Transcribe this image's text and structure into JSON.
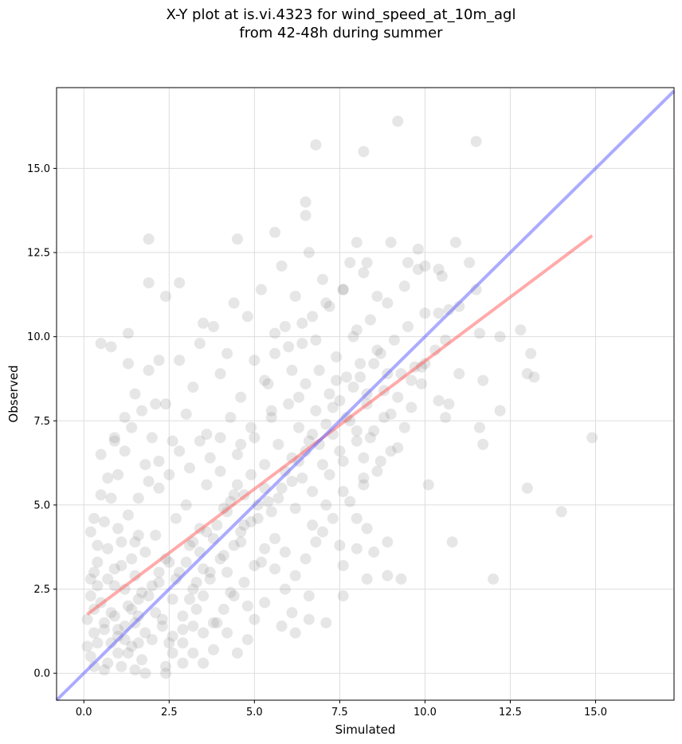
{
  "chart_data": {
    "type": "scatter",
    "title": "X-Y plot at is.vi.4323 for wind_speed_at_10m_agl",
    "subtitle": "from 42-48h during summer",
    "xlabel": "Simulated",
    "ylabel": "Observed",
    "xlim": [
      -0.8,
      17.3
    ],
    "ylim": [
      -0.8,
      17.4
    ],
    "grid": true,
    "x_ticks": [
      "0.0",
      "2.5",
      "5.0",
      "7.5",
      "10.0",
      "12.5",
      "15.0"
    ],
    "y_ticks": [
      "0.0",
      "2.5",
      "5.0",
      "7.5",
      "10.0",
      "12.5",
      "15.0"
    ],
    "x_tick_values": [
      0,
      2.5,
      5,
      7.5,
      10,
      12.5,
      15
    ],
    "y_tick_values": [
      0,
      2.5,
      5,
      7.5,
      10,
      12.5,
      15
    ],
    "point_color": "#808080",
    "points": [
      [
        0.2,
        0.5
      ],
      [
        0.3,
        1.2
      ],
      [
        0.4,
        0.9
      ],
      [
        0.5,
        2.1
      ],
      [
        0.6,
        1.5
      ],
      [
        0.7,
        0.3
      ],
      [
        0.8,
        1.8
      ],
      [
        0.9,
        2.6
      ],
      [
        1.0,
        1.1
      ],
      [
        1.0,
        0.6
      ],
      [
        1.1,
        3.2
      ],
      [
        1.2,
        1.4
      ],
      [
        1.3,
        2.0
      ],
      [
        1.4,
        0.8
      ],
      [
        1.5,
        2.9
      ],
      [
        1.6,
        1.7
      ],
      [
        1.7,
        0.4
      ],
      [
        1.8,
        3.6
      ],
      [
        1.9,
        2.3
      ],
      [
        2.0,
        1.0
      ],
      [
        2.1,
        4.1
      ],
      [
        2.2,
        2.7
      ],
      [
        2.3,
        1.6
      ],
      [
        2.4,
        3.4
      ],
      [
        2.5,
        0.9
      ],
      [
        2.6,
        2.2
      ],
      [
        2.7,
        4.6
      ],
      [
        2.8,
        3.0
      ],
      [
        2.9,
        1.3
      ],
      [
        3.0,
        5.0
      ],
      [
        3.1,
        3.8
      ],
      [
        3.2,
        2.5
      ],
      [
        3.3,
        1.9
      ],
      [
        3.4,
        4.3
      ],
      [
        3.5,
        3.1
      ],
      [
        3.6,
        5.6
      ],
      [
        3.7,
        2.8
      ],
      [
        3.8,
        4.0
      ],
      [
        3.9,
        1.5
      ],
      [
        4.0,
        6.0
      ],
      [
        4.1,
        3.5
      ],
      [
        4.2,
        4.8
      ],
      [
        4.3,
        2.4
      ],
      [
        4.4,
        5.3
      ],
      [
        4.5,
        6.5
      ],
      [
        4.6,
        3.9
      ],
      [
        4.7,
        4.4
      ],
      [
        4.8,
        2.0
      ],
      [
        4.9,
        5.9
      ],
      [
        5.0,
        7.0
      ],
      [
        5.1,
        4.6
      ],
      [
        5.2,
        3.3
      ],
      [
        5.3,
        6.2
      ],
      [
        5.4,
        5.1
      ],
      [
        5.5,
        7.6
      ],
      [
        5.6,
        4.0
      ],
      [
        5.7,
        6.8
      ],
      [
        5.8,
        5.5
      ],
      [
        5.9,
        3.6
      ],
      [
        6.0,
        8.0
      ],
      [
        6.1,
        6.4
      ],
      [
        6.2,
        4.9
      ],
      [
        6.3,
        7.3
      ],
      [
        6.4,
        5.8
      ],
      [
        6.5,
        8.6
      ],
      [
        6.6,
        6.9
      ],
      [
        6.7,
        4.4
      ],
      [
        6.8,
        7.8
      ],
      [
        6.9,
        9.0
      ],
      [
        7.0,
        6.2
      ],
      [
        7.1,
        5.0
      ],
      [
        7.2,
        8.3
      ],
      [
        7.3,
        7.1
      ],
      [
        7.4,
        9.4
      ],
      [
        7.5,
        6.6
      ],
      [
        7.6,
        5.4
      ],
      [
        7.7,
        8.8
      ],
      [
        7.8,
        7.5
      ],
      [
        7.9,
        10.0
      ],
      [
        8.0,
        6.9
      ],
      [
        8.1,
        9.2
      ],
      [
        8.2,
        5.8
      ],
      [
        8.3,
        8.0
      ],
      [
        8.4,
        10.5
      ],
      [
        8.5,
        7.2
      ],
      [
        8.6,
        9.6
      ],
      [
        8.7,
        6.3
      ],
      [
        8.8,
        8.4
      ],
      [
        8.9,
        11.0
      ],
      [
        9.0,
        7.7
      ],
      [
        9.1,
        9.9
      ],
      [
        9.2,
        6.7
      ],
      [
        9.3,
        8.9
      ],
      [
        9.4,
        11.5
      ],
      [
        9.5,
        10.3
      ],
      [
        9.6,
        7.9
      ],
      [
        9.7,
        9.1
      ],
      [
        9.8,
        12.0
      ],
      [
        9.9,
        8.6
      ],
      [
        10.0,
        10.7
      ],
      [
        0.4,
        3.8
      ],
      [
        0.6,
        4.5
      ],
      [
        0.8,
        5.2
      ],
      [
        1.0,
        5.9
      ],
      [
        1.2,
        6.6
      ],
      [
        1.4,
        7.3
      ],
      [
        1.6,
        4.1
      ],
      [
        1.8,
        6.2
      ],
      [
        2.0,
        7.0
      ],
      [
        2.2,
        5.5
      ],
      [
        2.4,
        8.0
      ],
      [
        2.6,
        6.9
      ],
      [
        2.8,
        9.3
      ],
      [
        3.0,
        7.7
      ],
      [
        3.2,
        8.5
      ],
      [
        3.4,
        9.8
      ],
      [
        3.6,
        7.1
      ],
      [
        3.8,
        10.3
      ],
      [
        4.0,
        8.9
      ],
      [
        4.2,
        9.5
      ],
      [
        4.4,
        11.0
      ],
      [
        4.6,
        8.2
      ],
      [
        4.8,
        10.6
      ],
      [
        5.0,
        9.3
      ],
      [
        5.2,
        11.4
      ],
      [
        5.4,
        8.6
      ],
      [
        5.6,
        10.1
      ],
      [
        5.8,
        12.1
      ],
      [
        6.0,
        9.7
      ],
      [
        6.2,
        11.2
      ],
      [
        6.4,
        10.4
      ],
      [
        6.6,
        12.5
      ],
      [
        6.8,
        9.9
      ],
      [
        7.0,
        11.7
      ],
      [
        7.2,
        10.9
      ],
      [
        7.4,
        8.7
      ],
      [
        7.6,
        11.4
      ],
      [
        7.8,
        12.2
      ],
      [
        8.0,
        10.2
      ],
      [
        8.2,
        11.9
      ],
      [
        0.9,
        7.0
      ],
      [
        0.5,
        9.8
      ],
      [
        0.8,
        9.7
      ],
      [
        1.3,
        10.1
      ],
      [
        1.3,
        9.2
      ],
      [
        1.9,
        9.0
      ],
      [
        2.2,
        9.3
      ],
      [
        2.4,
        11.2
      ],
      [
        2.8,
        11.6
      ],
      [
        1.9,
        11.6
      ],
      [
        1.9,
        12.9
      ],
      [
        3.5,
        10.4
      ],
      [
        4.5,
        12.9
      ],
      [
        5.6,
        13.1
      ],
      [
        6.5,
        14.0
      ],
      [
        6.5,
        13.6
      ],
      [
        6.8,
        15.7
      ],
      [
        8.2,
        15.5
      ],
      [
        9.2,
        16.4
      ],
      [
        11.5,
        15.8
      ],
      [
        7.1,
        11.0
      ],
      [
        7.6,
        11.4
      ],
      [
        8.0,
        12.8
      ],
      [
        8.3,
        12.2
      ],
      [
        8.6,
        11.2
      ],
      [
        9.0,
        12.8
      ],
      [
        9.5,
        12.2
      ],
      [
        9.8,
        12.6
      ],
      [
        10.0,
        12.1
      ],
      [
        10.4,
        12.0
      ],
      [
        10.5,
        11.8
      ],
      [
        10.9,
        12.8
      ],
      [
        11.3,
        12.2
      ],
      [
        10.4,
        10.7
      ],
      [
        10.7,
        10.8
      ],
      [
        11.0,
        10.9
      ],
      [
        11.5,
        11.4
      ],
      [
        10.0,
        9.2
      ],
      [
        10.3,
        9.6
      ],
      [
        10.6,
        9.9
      ],
      [
        11.0,
        8.9
      ],
      [
        11.6,
        10.1
      ],
      [
        12.2,
        10.0
      ],
      [
        12.8,
        10.2
      ],
      [
        13.1,
        9.5
      ],
      [
        13.0,
        8.9
      ],
      [
        13.2,
        8.8
      ],
      [
        11.7,
        8.7
      ],
      [
        10.7,
        8.0
      ],
      [
        10.4,
        8.1
      ],
      [
        10.6,
        7.6
      ],
      [
        11.6,
        7.3
      ],
      [
        12.2,
        7.8
      ],
      [
        11.7,
        6.8
      ],
      [
        14.9,
        7.0
      ],
      [
        13.0,
        5.5
      ],
      [
        14.0,
        4.8
      ],
      [
        10.1,
        5.6
      ],
      [
        10.8,
        3.9
      ],
      [
        12.0,
        2.8
      ],
      [
        9.3,
        2.8
      ],
      [
        8.9,
        2.9
      ],
      [
        8.3,
        2.8
      ],
      [
        8.5,
        3.6
      ],
      [
        8.9,
        3.9
      ],
      [
        8.0,
        3.7
      ],
      [
        8.3,
        4.3
      ],
      [
        8.0,
        4.6
      ],
      [
        7.8,
        5.1
      ],
      [
        8.2,
        5.6
      ],
      [
        7.6,
        2.3
      ],
      [
        7.6,
        3.2
      ],
      [
        7.5,
        3.8
      ],
      [
        7.1,
        1.5
      ],
      [
        6.6,
        1.6
      ],
      [
        6.2,
        1.2
      ],
      [
        6.1,
        1.8
      ],
      [
        6.6,
        2.3
      ],
      [
        5.8,
        1.4
      ],
      [
        5.3,
        2.1
      ],
      [
        4.8,
        1.0
      ],
      [
        5.0,
        1.6
      ],
      [
        4.5,
        0.6
      ],
      [
        4.2,
        1.2
      ],
      [
        3.8,
        0.7
      ],
      [
        3.5,
        0.3
      ],
      [
        3.2,
        0.6
      ],
      [
        2.9,
        0.3
      ],
      [
        2.4,
        0.2
      ],
      [
        2.4,
        0.0
      ],
      [
        1.8,
        0.0
      ],
      [
        1.5,
        0.1
      ],
      [
        1.1,
        0.2
      ],
      [
        0.6,
        0.1
      ],
      [
        0.3,
        0.2
      ],
      [
        0.1,
        0.8
      ],
      [
        0.1,
        1.6
      ],
      [
        0.2,
        2.3
      ],
      [
        0.3,
        3.0
      ],
      [
        0.4,
        2.6
      ],
      [
        0.3,
        4.6
      ],
      [
        0.2,
        4.2
      ],
      [
        0.5,
        5.3
      ],
      [
        0.7,
        5.8
      ],
      [
        0.5,
        6.5
      ],
      [
        0.9,
        6.9
      ],
      [
        1.2,
        7.6
      ],
      [
        1.5,
        8.3
      ],
      [
        1.7,
        7.8
      ],
      [
        2.1,
        8.0
      ],
      [
        1.4,
        3.4
      ],
      [
        1.5,
        3.9
      ],
      [
        1.1,
        3.9
      ],
      [
        0.9,
        3.1
      ],
      [
        0.7,
        2.8
      ],
      [
        1.2,
        2.5
      ],
      [
        1.6,
        2.2
      ],
      [
        2.0,
        2.6
      ],
      [
        2.2,
        3.0
      ],
      [
        2.5,
        3.3
      ],
      [
        2.7,
        2.8
      ],
      [
        3.0,
        3.3
      ],
      [
        3.2,
        3.9
      ],
      [
        3.4,
        3.6
      ],
      [
        3.6,
        4.2
      ],
      [
        3.9,
        4.4
      ],
      [
        4.1,
        4.9
      ],
      [
        4.3,
        5.1
      ],
      [
        4.5,
        5.6
      ],
      [
        4.7,
        5.3
      ],
      [
        1.8,
        1.2
      ],
      [
        1.6,
        0.9
      ],
      [
        1.3,
        0.6
      ],
      [
        1.0,
        1.3
      ],
      [
        0.8,
        0.9
      ],
      [
        1.4,
        1.9
      ],
      [
        1.7,
        2.4
      ],
      [
        2.1,
        1.8
      ],
      [
        2.3,
        1.4
      ],
      [
        2.6,
        1.1
      ],
      [
        2.9,
        1.7
      ],
      [
        3.1,
        2.2
      ],
      [
        3.3,
        2.7
      ],
      [
        3.5,
        2.3
      ],
      [
        3.7,
        3.0
      ],
      [
        4.0,
        3.4
      ],
      [
        4.2,
        3.0
      ],
      [
        4.4,
        3.8
      ],
      [
        4.6,
        4.2
      ],
      [
        4.9,
        4.5
      ],
      [
        5.1,
        5.0
      ],
      [
        5.3,
        5.5
      ],
      [
        5.5,
        4.8
      ],
      [
        5.7,
        5.2
      ],
      [
        5.9,
        6.0
      ],
      [
        6.1,
        5.7
      ],
      [
        6.3,
        6.3
      ],
      [
        6.5,
        6.6
      ],
      [
        6.7,
        7.1
      ],
      [
        6.9,
        6.8
      ],
      [
        7.1,
        7.4
      ],
      [
        7.3,
        7.9
      ],
      [
        7.5,
        8.1
      ],
      [
        7.7,
        7.6
      ],
      [
        7.9,
        8.5
      ],
      [
        8.1,
        8.8
      ],
      [
        8.3,
        8.3
      ],
      [
        8.5,
        9.2
      ],
      [
        8.7,
        9.5
      ],
      [
        8.9,
        8.9
      ],
      [
        5.3,
        8.7
      ],
      [
        5.6,
        9.5
      ],
      [
        5.9,
        10.3
      ],
      [
        6.1,
        9.0
      ],
      [
        6.4,
        9.8
      ],
      [
        6.7,
        10.6
      ],
      [
        6.3,
        8.2
      ],
      [
        5.5,
        7.8
      ],
      [
        4.9,
        7.3
      ],
      [
        4.6,
        6.8
      ],
      [
        4.3,
        7.6
      ],
      [
        4.0,
        7.0
      ],
      [
        3.7,
        6.4
      ],
      [
        3.4,
        6.9
      ],
      [
        3.1,
        6.1
      ],
      [
        2.8,
        6.6
      ],
      [
        2.5,
        5.9
      ],
      [
        2.2,
        6.3
      ],
      [
        1.9,
        5.7
      ],
      [
        1.6,
        5.2
      ],
      [
        1.3,
        4.7
      ],
      [
        1.0,
        4.3
      ],
      [
        0.7,
        3.7
      ],
      [
        0.4,
        3.3
      ],
      [
        0.2,
        2.8
      ],
      [
        0.3,
        1.9
      ],
      [
        0.6,
        1.3
      ],
      [
        0.9,
        1.7
      ],
      [
        1.2,
        1.0
      ],
      [
        1.5,
        1.5
      ],
      [
        6.8,
        3.9
      ],
      [
        6.5,
        3.4
      ],
      [
        6.2,
        2.9
      ],
      [
        5.9,
        2.5
      ],
      [
        5.6,
        3.1
      ],
      [
        5.3,
        3.7
      ],
      [
        5.0,
        3.2
      ],
      [
        4.7,
        2.7
      ],
      [
        4.4,
        2.3
      ],
      [
        4.1,
        1.9
      ],
      [
        3.8,
        1.5
      ],
      [
        3.5,
        1.2
      ],
      [
        3.2,
        1.4
      ],
      [
        2.9,
        0.9
      ],
      [
        2.6,
        0.6
      ],
      [
        7.3,
        4.6
      ],
      [
        7.0,
        4.2
      ],
      [
        6.7,
        5.4
      ],
      [
        7.2,
        5.9
      ],
      [
        7.6,
        6.3
      ],
      [
        8.0,
        7.2
      ],
      [
        8.4,
        7.0
      ],
      [
        8.8,
        7.6
      ],
      [
        9.2,
        8.2
      ],
      [
        9.6,
        8.7
      ],
      [
        9.9,
        9.1
      ],
      [
        9.4,
        7.3
      ],
      [
        9.0,
        6.6
      ],
      [
        8.6,
        6.0
      ],
      [
        8.2,
        6.4
      ]
    ],
    "series": [
      {
        "type": "regression-line",
        "color": "#ff6666",
        "x": [
          0.1,
          14.9
        ],
        "y": [
          1.75,
          13.0
        ]
      },
      {
        "type": "identity-line",
        "color": "#6666ff",
        "x": [
          -0.8,
          17.3
        ],
        "y": [
          -0.8,
          17.3
        ]
      }
    ]
  }
}
